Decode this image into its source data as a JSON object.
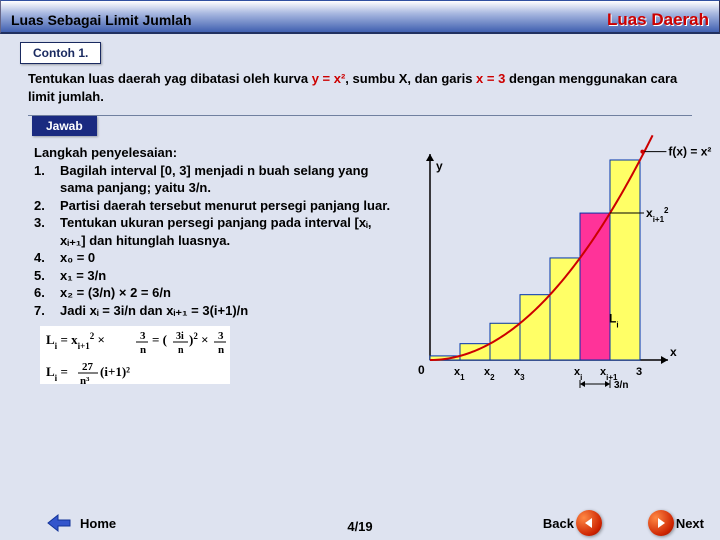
{
  "header": {
    "left": "Luas Sebagai Limit Jumlah",
    "right": "Luas Daerah"
  },
  "example_label": "Contoh 1.",
  "problem": {
    "pre": "Tentukan luas daerah yag dibatasi oleh kurva ",
    "eq1": "y = x²",
    "mid": ", sumbu X, dan garis ",
    "eq2": "x = 3",
    "post": " dengan menggunakan cara limit jumlah."
  },
  "jawab": "Jawab",
  "steps_title": "Langkah penyelesaian:",
  "steps": [
    "Bagilah interval [0, 3] menjadi n buah selang yang sama panjang; yaitu 3/n.",
    "Partisi daerah tersebut menurut persegi panjang luar.",
    "Tentukan ukuran persegi panjang pada interval [xᵢ, xᵢ₊₁] dan hitunglah luasnya.",
    "       x₀ = 0",
    "       x₁ = 3/n",
    "       x₂ = (3/n) × 2 = 6/n",
    "       Jadi xᵢ = 3i/n dan xᵢ₊₁ = 3(i+1)/n"
  ],
  "chart": {
    "type": "function-plot",
    "curve": "y = x^2",
    "x_range": [
      0,
      3.2
    ],
    "y_range": [
      0,
      10
    ],
    "bars_count": 7,
    "bar_fill": "#ffff66",
    "bar_stroke": "#0033aa",
    "highlight_fill": "#ff3399",
    "curve_color": "#cc0000",
    "axis_color": "#000000",
    "background": "#dee3f0",
    "x_ticks": [
      "0",
      "x₁",
      "x₂",
      "x₃",
      "xᵢ",
      "xᵢ₊₁",
      "3"
    ],
    "y_label": "y",
    "x_label": "x",
    "legend_fx": "f(x) = x²",
    "li_label": "Lᵢ",
    "xi1_sq": "xᵢ₊₁²",
    "interval_label": "3/n"
  },
  "nav": {
    "home": "Home",
    "page": "4/19",
    "back": "Back",
    "next": "Next"
  }
}
